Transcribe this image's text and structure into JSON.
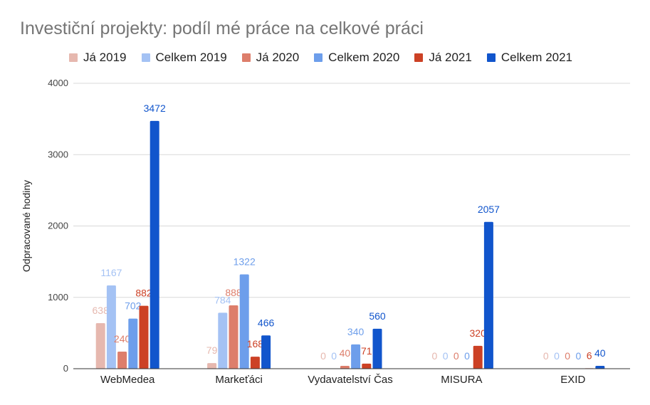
{
  "chart_data": {
    "type": "bar",
    "title": "Investiční projekty: podíl mé práce na celkové práci",
    "xlabel": "",
    "ylabel": "Odpracované hodiny",
    "ylim": [
      0,
      4000
    ],
    "yticks": [
      "0",
      "1000",
      "2000",
      "3000",
      "4000"
    ],
    "grid": true,
    "legend_position": "top",
    "categories": [
      "WebMedea",
      "Markeťáci",
      "Vydavatelství Čas",
      "MISURA",
      "EXID"
    ],
    "series": [
      {
        "name": "Já 2019",
        "color": "#e6b8af",
        "label_color": "#e6b8af",
        "values": [
          638,
          79,
          0,
          0,
          0
        ]
      },
      {
        "name": "Celkem 2019",
        "color": "#a4c2f4",
        "label_color": "#a4c2f4",
        "values": [
          1167,
          784,
          0,
          0,
          0
        ]
      },
      {
        "name": "Já 2020",
        "color": "#dd7e6b",
        "label_color": "#dd7e6b",
        "values": [
          240,
          888,
          40,
          0,
          0
        ]
      },
      {
        "name": "Celkem 2020",
        "color": "#6d9eeb",
        "label_color": "#6d9eeb",
        "values": [
          702,
          1322,
          340,
          0,
          0
        ]
      },
      {
        "name": "Já 2021",
        "color": "#cc4125",
        "label_color": "#cc4125",
        "values": [
          882,
          168,
          71,
          320,
          6
        ]
      },
      {
        "name": "Celkem 2021",
        "color": "#1155cc",
        "label_color": "#1155cc",
        "values": [
          3472,
          466,
          560,
          2057,
          40
        ]
      }
    ]
  }
}
